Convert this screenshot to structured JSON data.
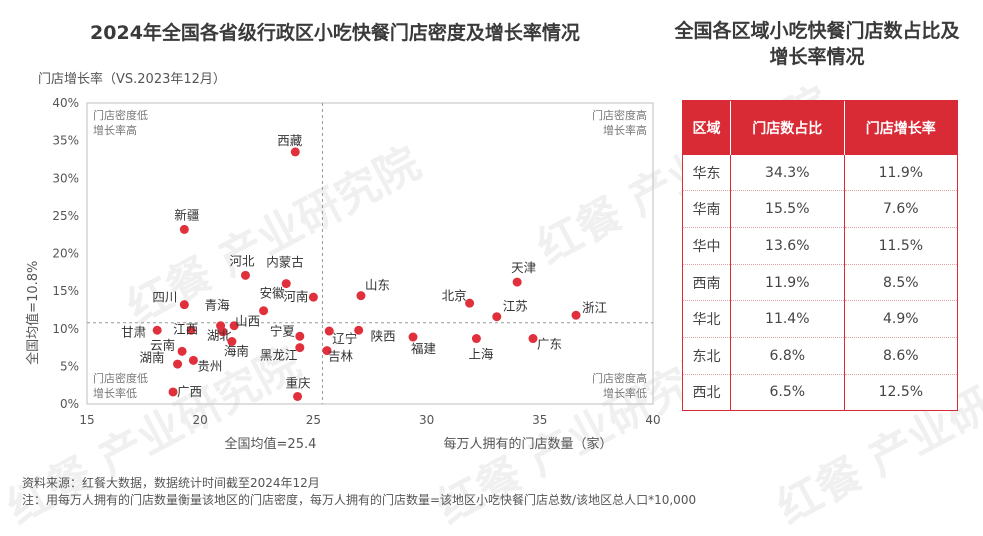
{
  "titles": {
    "left": "2024年全国各省级行政区小吃快餐门店密度及增长率情况",
    "right": "全国各区域小吃快餐门店数占比及增长率情况"
  },
  "chart_data": {
    "type": "scatter",
    "ylabel_top": "门店增长率（VS.2023年12月）",
    "xlabel": "每万人拥有的门店数量（家）",
    "xlim": [
      15,
      40
    ],
    "ylim": [
      0,
      40
    ],
    "x_ticks": [
      15,
      20,
      25,
      30,
      35,
      40
    ],
    "y_ticks": [
      0,
      5,
      10,
      15,
      20,
      25,
      30,
      35,
      40
    ],
    "y_tick_suffix": "%",
    "avg_x": 25.4,
    "avg_y": 10.8,
    "avg_x_label": "全国均值=25.4",
    "avg_y_label": "全国均值=10.8%",
    "quadrant_labels": {
      "top_left": [
        "门店密度低",
        "增长率高"
      ],
      "top_right": [
        "门店密度高",
        "增长率高"
      ],
      "bottom_left": [
        "门店密度低",
        "增长率低"
      ],
      "bottom_right": [
        "门店密度高",
        "增长率低"
      ]
    },
    "point_color": "#e0303c",
    "points": [
      {
        "name": "西藏",
        "x": 24.2,
        "y": 33.5,
        "lx": -18,
        "ly": -7
      },
      {
        "name": "新疆",
        "x": 19.3,
        "y": 23.2,
        "lx": -10,
        "ly": -10
      },
      {
        "name": "河北",
        "x": 22.0,
        "y": 17.1,
        "lx": -16,
        "ly": -10
      },
      {
        "name": "内蒙古",
        "x": 23.8,
        "y": 16.0,
        "lx": -20,
        "ly": -17
      },
      {
        "name": "安徽",
        "x": 22.8,
        "y": 12.4,
        "lx": -4,
        "ly": -13
      },
      {
        "name": "河南",
        "x": 25.0,
        "y": 14.2,
        "lx": -30,
        "ly": 4
      },
      {
        "name": "四川",
        "x": 19.3,
        "y": 13.2,
        "lx": -32,
        "ly": -3
      },
      {
        "name": "青海",
        "x": 20.9,
        "y": 10.4,
        "lx": -16,
        "ly": -16
      },
      {
        "name": "山西",
        "x": 21.5,
        "y": 10.4,
        "lx": 1,
        "ly": 0
      },
      {
        "name": "甘肃",
        "x": 18.1,
        "y": 9.8,
        "lx": -36,
        "ly": 6
      },
      {
        "name": "江西",
        "x": 19.6,
        "y": 9.8,
        "lx": -18,
        "ly": 3
      },
      {
        "name": "湖北",
        "x": 21.0,
        "y": 9.6,
        "lx": -16,
        "ly": 8
      },
      {
        "name": "云南",
        "x": 19.2,
        "y": 7.0,
        "lx": -32,
        "ly": -2
      },
      {
        "name": "宁夏",
        "x": 24.4,
        "y": 9.0,
        "lx": -30,
        "ly": -1
      },
      {
        "name": "海南",
        "x": 21.4,
        "y": 8.3,
        "lx": -8,
        "ly": 14
      },
      {
        "name": "黑龙江",
        "x": 24.4,
        "y": 7.5,
        "lx": -40,
        "ly": 12
      },
      {
        "name": "湖南",
        "x": 19.0,
        "y": 5.3,
        "lx": -38,
        "ly": -2
      },
      {
        "name": "贵州",
        "x": 19.7,
        "y": 5.8,
        "lx": 4,
        "ly": 10
      },
      {
        "name": "广西",
        "x": 18.8,
        "y": 1.6,
        "lx": 4,
        "ly": 4
      },
      {
        "name": "重庆",
        "x": 24.3,
        "y": 1.0,
        "lx": -12,
        "ly": -9
      },
      {
        "name": "辽宁",
        "x": 25.7,
        "y": 9.7,
        "lx": 3,
        "ly": 12
      },
      {
        "name": "吉林",
        "x": 25.6,
        "y": 7.1,
        "lx": 1,
        "ly": 10
      },
      {
        "name": "陕西",
        "x": 27.0,
        "y": 9.8,
        "lx": 12,
        "ly": 10
      },
      {
        "name": "山东",
        "x": 27.1,
        "y": 14.4,
        "lx": 4,
        "ly": -6
      },
      {
        "name": "福建",
        "x": 29.4,
        "y": 8.9,
        "lx": -2,
        "ly": 16
      },
      {
        "name": "北京",
        "x": 31.9,
        "y": 13.4,
        "lx": -28,
        "ly": -3
      },
      {
        "name": "上海",
        "x": 32.2,
        "y": 8.7,
        "lx": -8,
        "ly": 20
      },
      {
        "name": "江苏",
        "x": 33.1,
        "y": 11.6,
        "lx": 6,
        "ly": -6
      },
      {
        "name": "天津",
        "x": 34.0,
        "y": 16.2,
        "lx": -6,
        "ly": -10
      },
      {
        "name": "广东",
        "x": 34.7,
        "y": 8.7,
        "lx": 4,
        "ly": 10
      },
      {
        "name": "浙江",
        "x": 36.6,
        "y": 11.8,
        "lx": 6,
        "ly": -3
      }
    ]
  },
  "table": {
    "headers": [
      "区域",
      "门店数占比",
      "门店增长率"
    ],
    "rows": [
      [
        "华东",
        "34.3%",
        "11.9%"
      ],
      [
        "华南",
        "15.5%",
        "7.6%"
      ],
      [
        "华中",
        "13.6%",
        "11.5%"
      ],
      [
        "西南",
        "11.9%",
        "8.5%"
      ],
      [
        "华北",
        "11.4%",
        "4.9%"
      ],
      [
        "东北",
        "6.8%",
        "8.6%"
      ],
      [
        "西北",
        "6.5%",
        "12.5%"
      ]
    ],
    "accent": "#d92b36"
  },
  "footnotes": {
    "source": "资料来源：红餐大数据，数据统计时间截至2024年12月",
    "note": "注：用每万人拥有的门店数量衡量该地区的门店密度，每万人拥有的门店数量=该地区小吃快餐门店总数/该地区总人口*10,000"
  },
  "watermark": "红餐 产业研究院"
}
